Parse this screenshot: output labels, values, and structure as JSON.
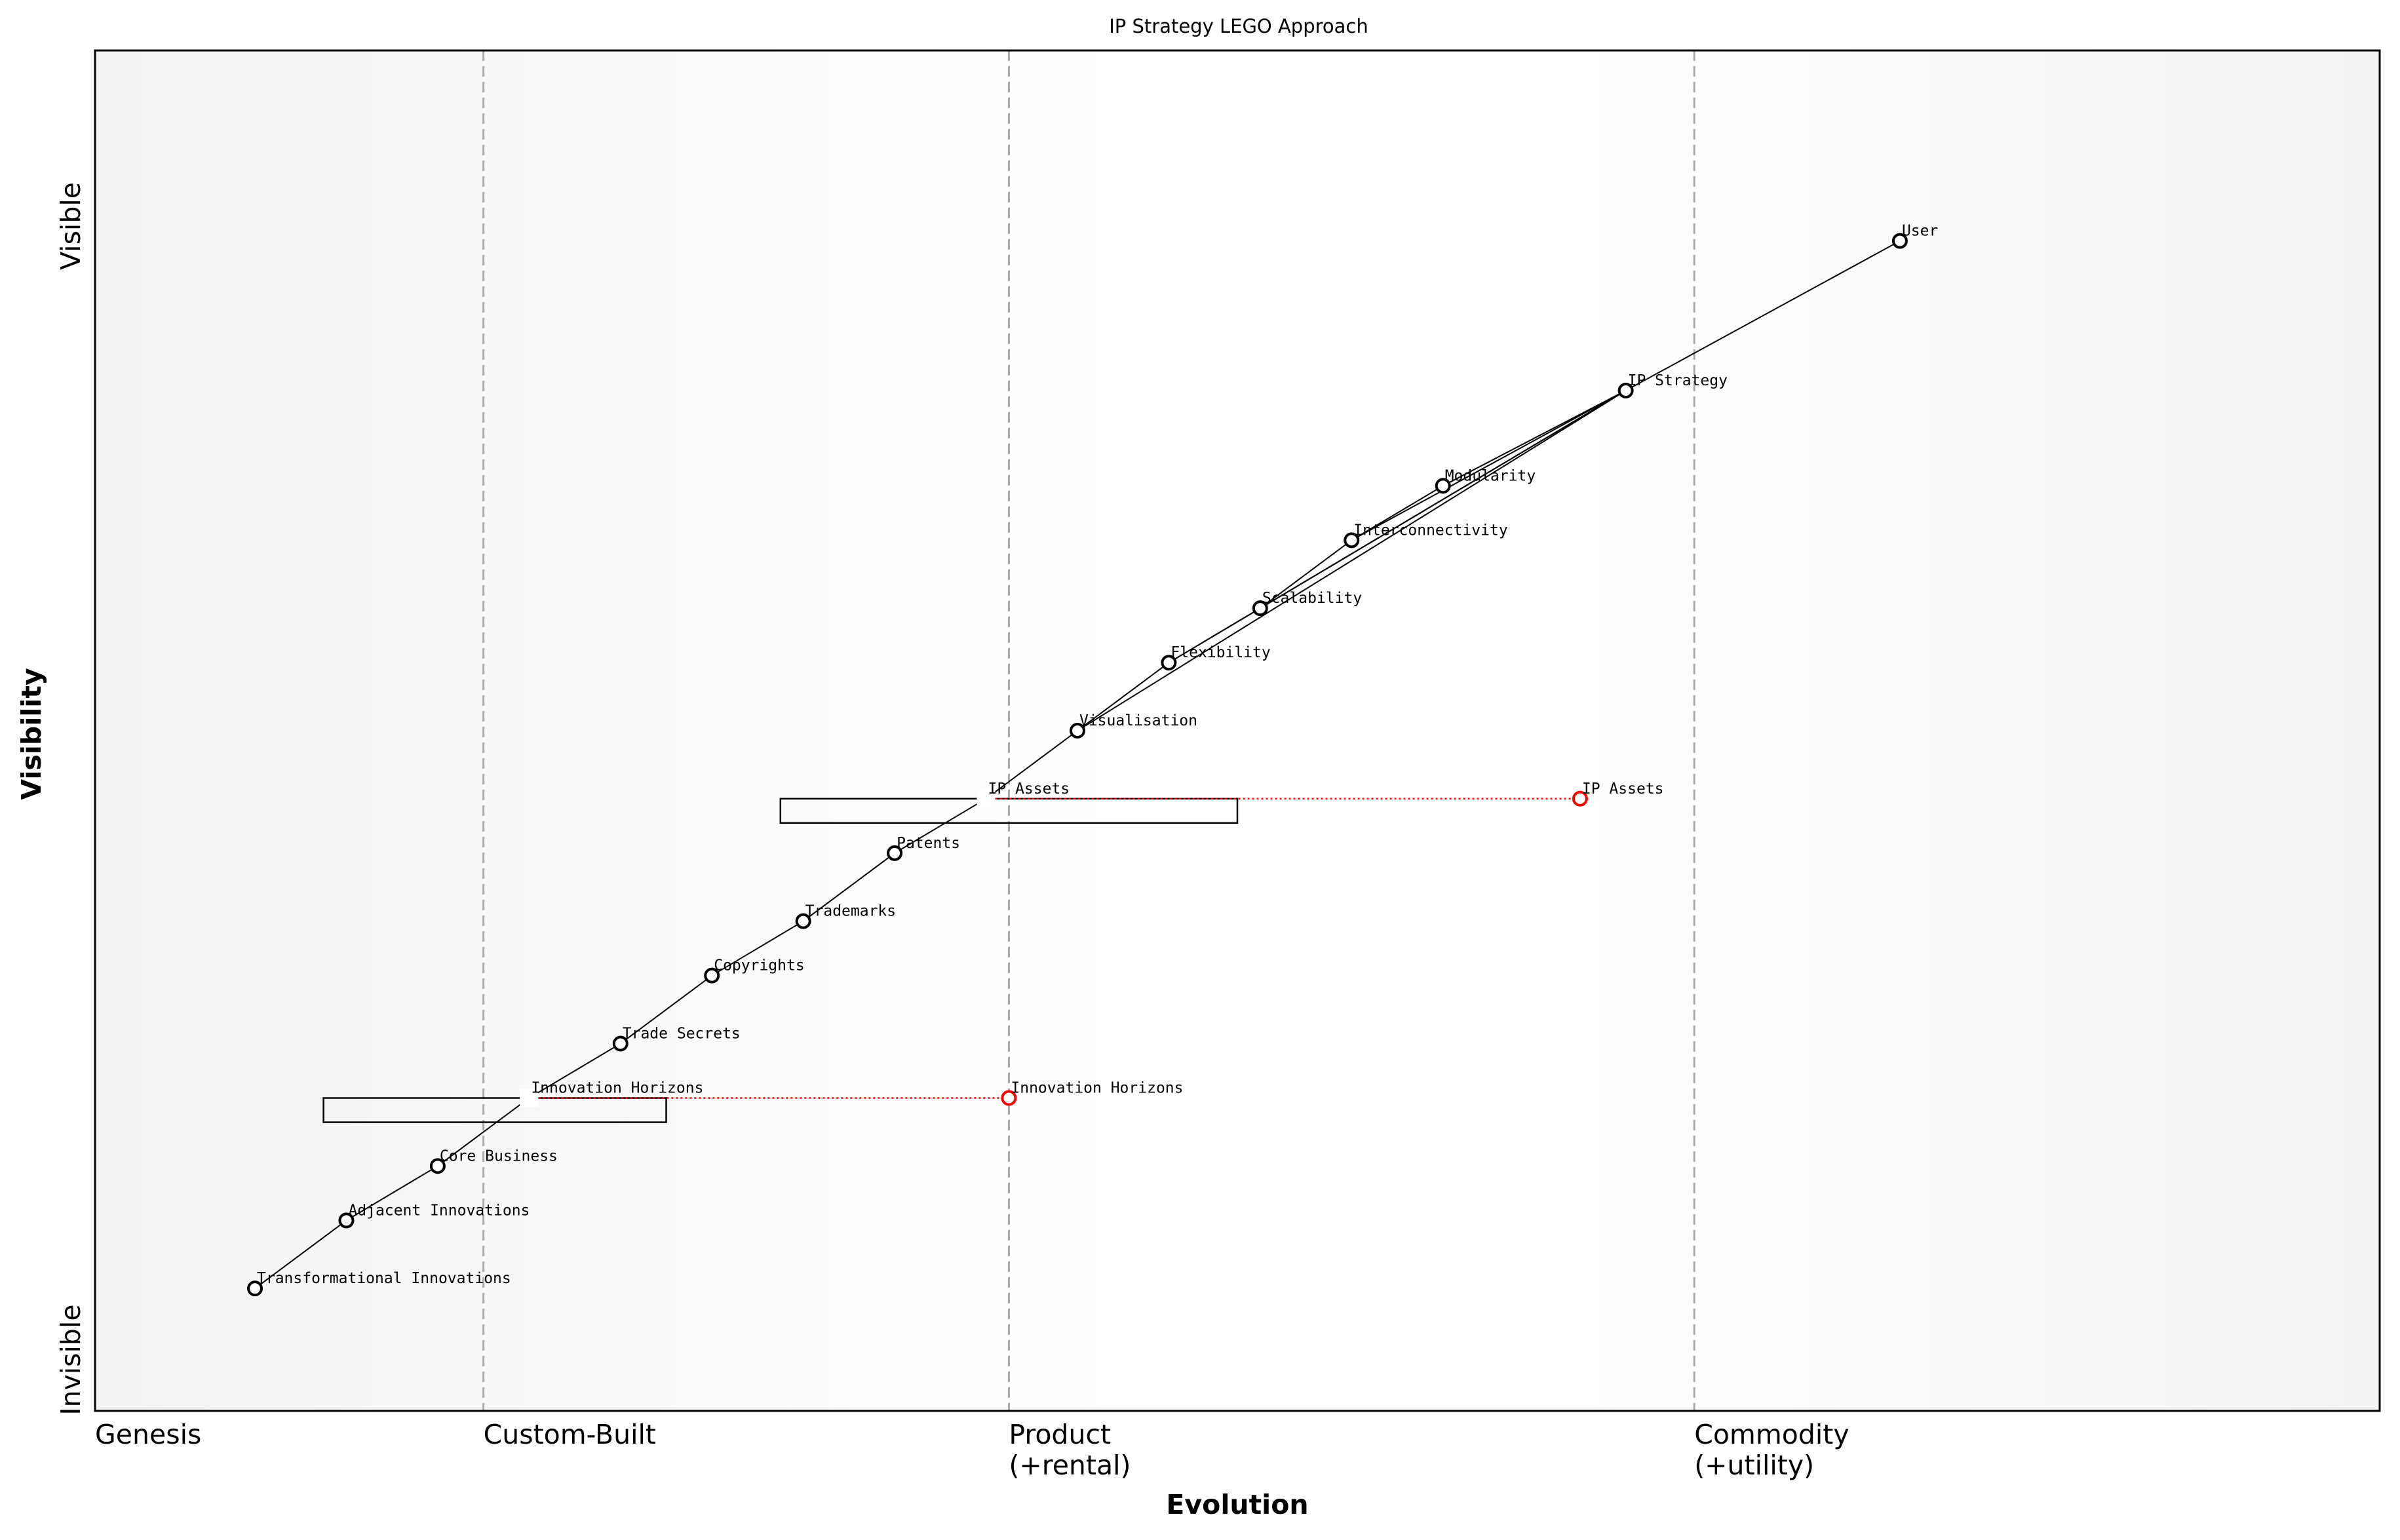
{
  "chart_data": {
    "type": "wardley-map",
    "title": "IP Strategy LEGO Approach",
    "xlabel": "Evolution",
    "ylabel": "Visibility",
    "xlim": [
      0,
      1
    ],
    "ylim": [
      0,
      1
    ],
    "y_ticks": {
      "top": "Visible",
      "bottom": "Invisible"
    },
    "stages": [
      {
        "label": "Genesis",
        "x": 0.0,
        "line": false
      },
      {
        "label": "Custom-Built",
        "x": 0.17,
        "line": true
      },
      {
        "label": "Product\n(+rental)",
        "x": 0.4,
        "line": true
      },
      {
        "label": "Commodity\n(+utility)",
        "x": 0.7,
        "line": true
      }
    ],
    "components": [
      {
        "name": "User",
        "evolution": 0.79,
        "visibility": 0.86
      },
      {
        "name": "IP Strategy",
        "evolution": 0.67,
        "visibility": 0.75
      },
      {
        "name": "Modularity",
        "evolution": 0.59,
        "visibility": 0.68
      },
      {
        "name": "Interconnectivity",
        "evolution": 0.55,
        "visibility": 0.64
      },
      {
        "name": "Scalability",
        "evolution": 0.51,
        "visibility": 0.59
      },
      {
        "name": "Flexibility",
        "evolution": 0.47,
        "visibility": 0.55
      },
      {
        "name": "Visualisation",
        "evolution": 0.43,
        "visibility": 0.5
      },
      {
        "name": "IP Assets",
        "evolution": 0.39,
        "visibility": 0.45,
        "pipeline": true
      },
      {
        "name": "Patents",
        "evolution": 0.35,
        "visibility": 0.41
      },
      {
        "name": "Trademarks",
        "evolution": 0.31,
        "visibility": 0.36
      },
      {
        "name": "Copyrights",
        "evolution": 0.27,
        "visibility": 0.32
      },
      {
        "name": "Trade Secrets",
        "evolution": 0.23,
        "visibility": 0.27
      },
      {
        "name": "Innovation Horizons",
        "evolution": 0.19,
        "visibility": 0.23,
        "pipeline": true
      },
      {
        "name": "Core Business",
        "evolution": 0.15,
        "visibility": 0.18
      },
      {
        "name": "Adjacent Innovations",
        "evolution": 0.11,
        "visibility": 0.14
      },
      {
        "name": "Transformational Innovations",
        "evolution": 0.07,
        "visibility": 0.09
      }
    ],
    "evolved": [
      {
        "name": "IP Assets",
        "evolution": 0.65,
        "visibility": 0.45
      },
      {
        "name": "Innovation Horizons",
        "evolution": 0.4,
        "visibility": 0.23
      }
    ],
    "pipelines": [
      {
        "name": "IP Assets",
        "start": 0.3,
        "end": 0.5
      },
      {
        "name": "Innovation Horizons",
        "start": 0.1,
        "end": 0.25
      }
    ],
    "links": [
      [
        "User",
        "IP Strategy"
      ],
      [
        "IP Strategy",
        "Modularity"
      ],
      [
        "IP Strategy",
        "Interconnectivity"
      ],
      [
        "IP Strategy",
        "Scalability"
      ],
      [
        "IP Strategy",
        "Flexibility"
      ],
      [
        "IP Strategy",
        "Visualisation"
      ],
      [
        "Modularity",
        "Interconnectivity"
      ],
      [
        "Interconnectivity",
        "Scalability"
      ],
      [
        "Scalability",
        "Flexibility"
      ],
      [
        "Flexibility",
        "Visualisation"
      ],
      [
        "Visualisation",
        "IP Assets"
      ],
      [
        "IP Assets",
        "Patents"
      ],
      [
        "Patents",
        "Trademarks"
      ],
      [
        "Trademarks",
        "Copyrights"
      ],
      [
        "Copyrights",
        "Trade Secrets"
      ],
      [
        "Trade Secrets",
        "Innovation Horizons"
      ],
      [
        "Innovation Horizons",
        "Core Business"
      ],
      [
        "Core Business",
        "Adjacent Innovations"
      ],
      [
        "Adjacent Innovations",
        "Transformational Innovations"
      ]
    ],
    "colors": {
      "node": "#000000",
      "evolved": "#ff0000",
      "stage_line": "#aaaaaa",
      "background_edge": "#f2f2f2"
    }
  }
}
